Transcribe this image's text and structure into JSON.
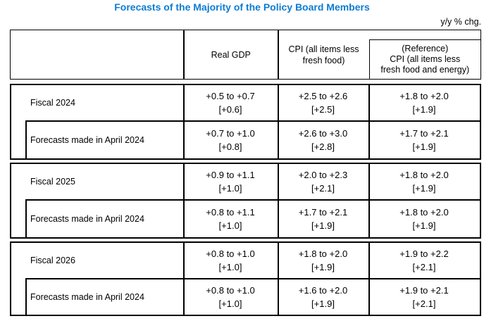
{
  "title": "Forecasts of the Majority of the Policy Board Members",
  "unit_note": "y/y % chg.",
  "colors": {
    "title_blue": "#0d7cd2",
    "border": "#000000",
    "background": "#ffffff"
  },
  "header": {
    "real_gdp": "Real GDP",
    "cpi": {
      "line1": "CPI (all items less",
      "line2": "fresh food)"
    },
    "reference": {
      "line1": "(Reference)",
      "line2": "CPI (all items less",
      "line3": "fresh food and energy)"
    }
  },
  "sections": [
    {
      "label": "Fiscal 2024",
      "sub_label": "Forecasts made in April 2024",
      "rows": [
        {
          "gdp": {
            "range": "+0.5 to +0.7",
            "median": "[+0.6]"
          },
          "cpi": {
            "range": "+2.5 to +2.6",
            "median": "[+2.5]"
          },
          "reference": {
            "range": "+1.8 to +2.0",
            "median": "[+1.9]"
          }
        },
        {
          "gdp": {
            "range": "+0.7 to +1.0",
            "median": "[+0.8]"
          },
          "cpi": {
            "range": "+2.6 to +3.0",
            "median": "[+2.8]"
          },
          "reference": {
            "range": "+1.7 to +2.1",
            "median": "[+1.9]"
          }
        }
      ]
    },
    {
      "label": "Fiscal 2025",
      "sub_label": "Forecasts made in April 2024",
      "rows": [
        {
          "gdp": {
            "range": "+0.9 to +1.1",
            "median": "[+1.0]"
          },
          "cpi": {
            "range": "+2.0 to +2.3",
            "median": "[+2.1]"
          },
          "reference": {
            "range": "+1.8 to +2.0",
            "median": "[+1.9]"
          }
        },
        {
          "gdp": {
            "range": "+0.8 to +1.1",
            "median": "[+1.0]"
          },
          "cpi": {
            "range": "+1.7 to +2.1",
            "median": "[+1.9]"
          },
          "reference": {
            "range": "+1.8 to +2.0",
            "median": "[+1.9]"
          }
        }
      ]
    },
    {
      "label": "Fiscal 2026",
      "sub_label": "Forecasts made in April 2024",
      "rows": [
        {
          "gdp": {
            "range": "+0.8 to +1.0",
            "median": "[+1.0]"
          },
          "cpi": {
            "range": "+1.8 to +2.0",
            "median": "[+1.9]"
          },
          "reference": {
            "range": "+1.9 to +2.2",
            "median": "[+2.1]"
          }
        },
        {
          "gdp": {
            "range": "+0.8 to +1.0",
            "median": "[+1.0]"
          },
          "cpi": {
            "range": "+1.6 to +2.0",
            "median": "[+1.9]"
          },
          "reference": {
            "range": "+1.9 to +2.1",
            "median": "[+2.1]"
          }
        }
      ]
    }
  ]
}
